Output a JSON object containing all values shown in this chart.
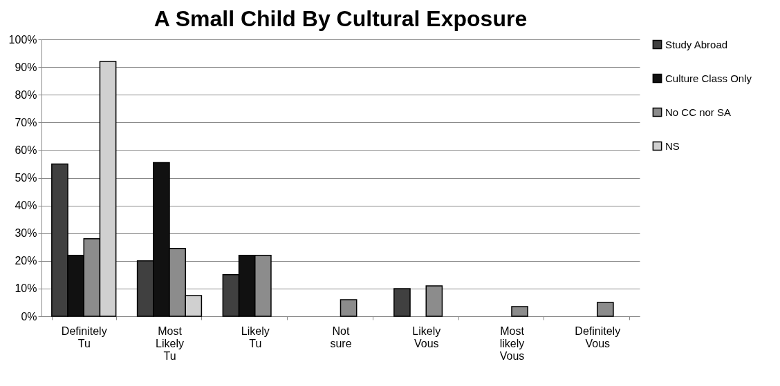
{
  "chart_data": {
    "type": "bar",
    "title": "A Small Child By Cultural Exposure",
    "categories": [
      "Definitely Tu",
      "Most Likely Tu",
      "Likely Tu",
      "Not sure",
      "Likely Vous",
      "Most likely Vous",
      "Definitely Vous"
    ],
    "series": [
      {
        "name": "Study Abroad",
        "color": "#404040",
        "values": [
          55,
          20,
          15,
          null,
          10,
          null,
          null
        ]
      },
      {
        "name": "Culture Class Only",
        "color": "#111111",
        "values": [
          22,
          55.5,
          22,
          null,
          null,
          null,
          null
        ]
      },
      {
        "name": "No CC nor SA",
        "color": "#8c8c8c",
        "values": [
          28,
          24.5,
          22,
          6,
          11,
          3.5,
          5
        ]
      },
      {
        "name": "NS",
        "color": "#d0d0d0",
        "values": [
          92,
          7.5,
          null,
          null,
          null,
          null,
          null
        ]
      }
    ],
    "ylim": [
      0,
      100
    ],
    "yticks": [
      {
        "value": 0,
        "label": "0%"
      },
      {
        "value": 10,
        "label": "10%"
      },
      {
        "value": 20,
        "label": "20%"
      },
      {
        "value": 30,
        "label": "30%"
      },
      {
        "value": 40,
        "label": "40%"
      },
      {
        "value": 50,
        "label": "50%"
      },
      {
        "value": 60,
        "label": "60%"
      },
      {
        "value": 70,
        "label": "70%"
      },
      {
        "value": 80,
        "label": "80%"
      },
      {
        "value": 90,
        "label": "90%"
      },
      {
        "value": 100,
        "label": "100%"
      }
    ],
    "grid": "y",
    "legend": "right"
  }
}
